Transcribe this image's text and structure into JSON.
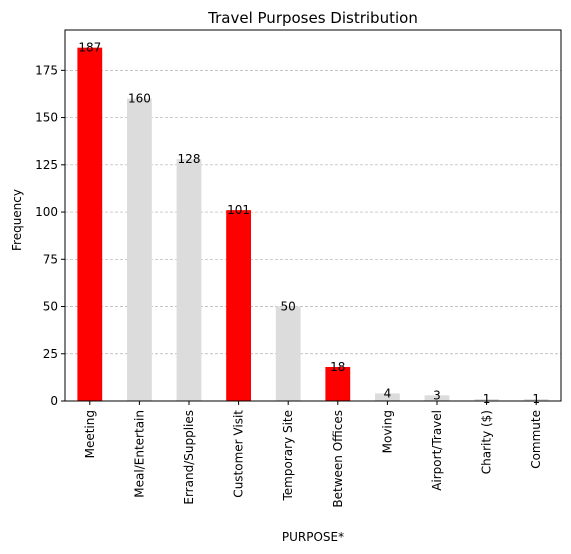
{
  "chart_data": {
    "type": "bar",
    "title": "Travel Purposes Distribution",
    "xlabel": "PURPOSE*",
    "ylabel": "Frequency",
    "categories": [
      "Meeting",
      "Meal/Entertain",
      "Errand/Supplies",
      "Customer Visit",
      "Temporary Site",
      "Between Offices",
      "Moving",
      "Airport/Travel",
      "Charity ($)",
      "Commute"
    ],
    "values": [
      187,
      160,
      128,
      101,
      50,
      18,
      4,
      3,
      1,
      1
    ],
    "highlighted": [
      true,
      false,
      false,
      true,
      false,
      true,
      false,
      false,
      false,
      false
    ],
    "colors": {
      "highlight": "#ff0000",
      "default": "#dcdcdc"
    },
    "ylim": [
      0,
      196.35
    ],
    "yticks": [
      0,
      25,
      50,
      75,
      100,
      125,
      150,
      175
    ],
    "grid": "y-dashed",
    "x_tick_rotation": 90
  }
}
